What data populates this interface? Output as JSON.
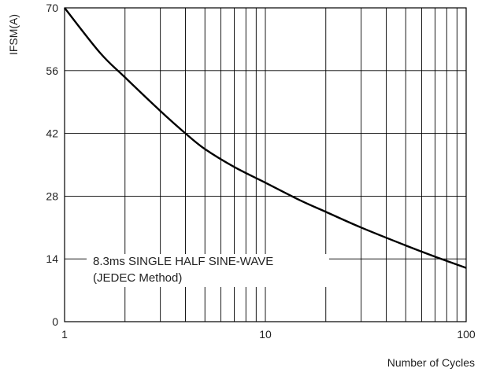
{
  "chart_data": {
    "type": "line",
    "title": "",
    "xlabel": "Number of Cycles",
    "ylabel": "IFSM(A)",
    "x_scale": "log",
    "xlim": [
      1,
      100
    ],
    "ylim": [
      0,
      70
    ],
    "x_ticks": [
      1,
      10,
      100
    ],
    "x_tick_labels": [
      "1",
      "10",
      "100"
    ],
    "y_ticks": [
      0,
      14,
      28,
      42,
      56,
      70
    ],
    "y_tick_labels": [
      "0",
      "14",
      "28",
      "42",
      "56",
      "70"
    ],
    "grid": true,
    "annotation": {
      "line1": "8.3ms SINGLE HALF SINE-WAVE",
      "line2": "(JEDEC Method)"
    },
    "series": [
      {
        "x": [
          1,
          1.5,
          2,
          3,
          4,
          5,
          7,
          10,
          15,
          20,
          30,
          50,
          70,
          100
        ],
        "values": [
          70,
          60,
          54.5,
          47,
          42,
          38.5,
          34.5,
          31,
          27,
          24.5,
          21,
          17,
          14.5,
          12
        ]
      }
    ]
  }
}
